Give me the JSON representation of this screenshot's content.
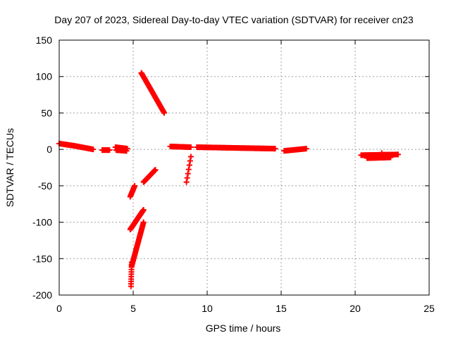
{
  "chart_data": {
    "type": "scatter",
    "title": "Day 207 of 2023, Sidereal Day-to-day VTEC variation (SDTVAR) for receiver cn23",
    "xlabel": "GPS time / hours",
    "ylabel": "SDTVAR / TECUs",
    "xlim": [
      0,
      25
    ],
    "ylim": [
      -200,
      150
    ],
    "xticks": [
      0,
      5,
      10,
      15,
      20,
      25
    ],
    "yticks": [
      -200,
      -150,
      -100,
      -50,
      0,
      50,
      100,
      150
    ],
    "grid": true,
    "marker": "plus",
    "color": "#ff0000",
    "segments": [
      {
        "x0": 0.0,
        "x1": 1.0,
        "y0": 8,
        "y1": 5,
        "step": 0.05
      },
      {
        "x0": 1.0,
        "x1": 2.3,
        "y0": 5,
        "y1": 0,
        "step": 0.05
      },
      {
        "x0": 2.9,
        "x1": 3.4,
        "y0": -1,
        "y1": -1,
        "step": 0.05
      },
      {
        "x0": 3.8,
        "x1": 4.6,
        "y0": 3,
        "y1": 1,
        "step": 0.04
      },
      {
        "x0": 3.85,
        "x1": 4.55,
        "y0": -1,
        "y1": -2,
        "step": 0.05
      },
      {
        "x0": 5.55,
        "x1": 7.1,
        "y0": 105,
        "y1": 50,
        "step": 0.03
      },
      {
        "x0": 5.7,
        "x1": 6.5,
        "y0": -45,
        "y1": -28,
        "step": 0.03
      },
      {
        "x0": 4.8,
        "x1": 5.1,
        "y0": -65,
        "y1": -50,
        "step": 0.02
      },
      {
        "x0": 4.8,
        "x1": 5.7,
        "y0": -110,
        "y1": -83,
        "step": 0.02
      },
      {
        "x0": 4.9,
        "x1": 5.7,
        "y0": -160,
        "y1": -100,
        "step": 0.02
      },
      {
        "x0": 4.85,
        "x1": 4.9,
        "y0": -188,
        "y1": -155,
        "step": 0.005
      },
      {
        "x0": 7.5,
        "x1": 8.9,
        "y0": 4,
        "y1": 3,
        "step": 0.05
      },
      {
        "x0": 8.6,
        "x1": 8.9,
        "y0": -45,
        "y1": -10,
        "step": 0.05
      },
      {
        "x0": 9.3,
        "x1": 14.6,
        "y0": 3,
        "y1": 1,
        "step": 0.06
      },
      {
        "x0": 15.2,
        "x1": 16.7,
        "y0": -2,
        "y1": 1,
        "step": 0.06
      },
      {
        "x0": 20.4,
        "x1": 22.9,
        "y0": -8,
        "y1": -7,
        "step": 0.05
      },
      {
        "x0": 20.8,
        "x1": 22.4,
        "y0": -12,
        "y1": -11,
        "step": 0.05
      }
    ],
    "points": [
      {
        "x": 21.8,
        "y": -5
      }
    ]
  }
}
